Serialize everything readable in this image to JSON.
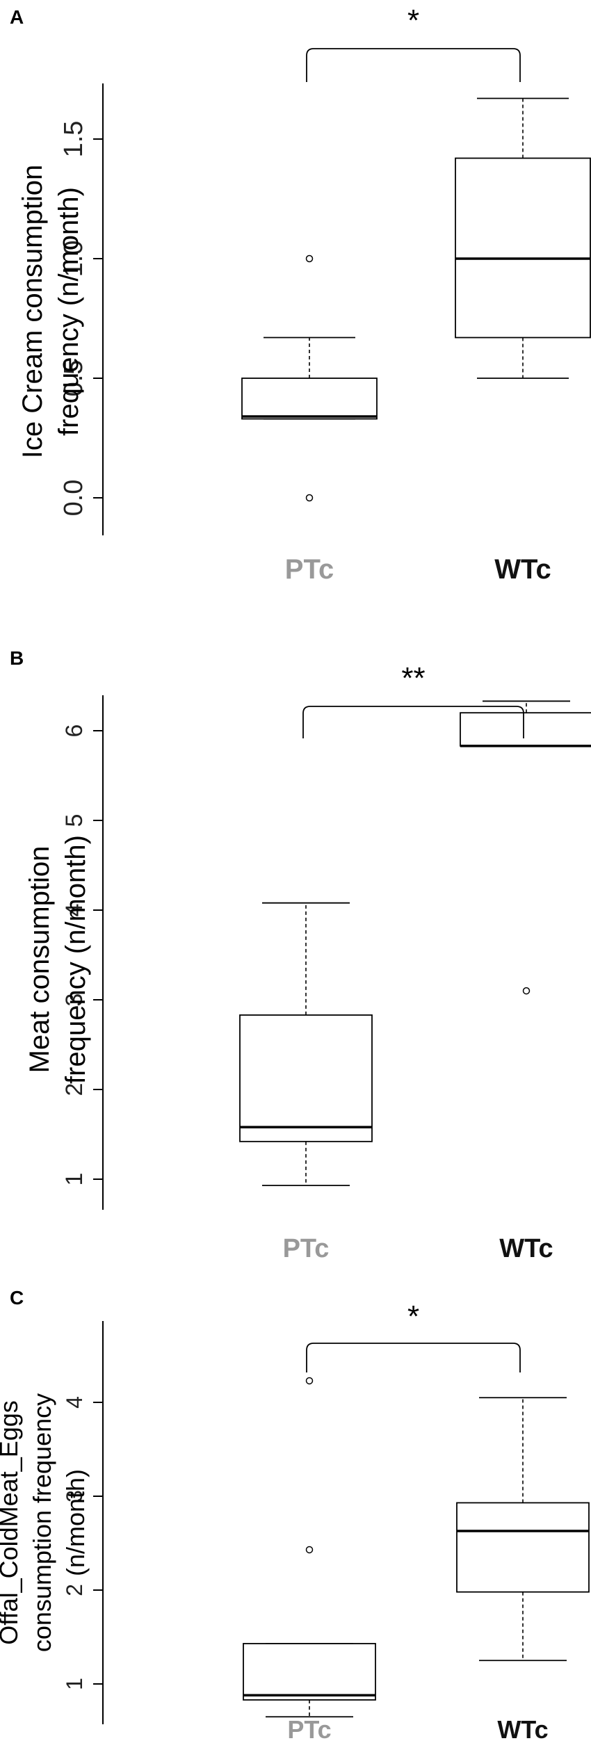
{
  "chart_data": [
    {
      "panel": "A",
      "type": "boxplot",
      "ylabel_lines": [
        "Ice Cream consumption",
        "frequency (n/month)"
      ],
      "categories": [
        "PTc",
        "WTc"
      ],
      "category_colors": [
        "#999999",
        "#111111"
      ],
      "ylim": [
        -0.15,
        1.8
      ],
      "yticks": [
        0.0,
        0.5,
        1.0,
        1.5
      ],
      "ytick_labels": [
        "0.0",
        "0.5",
        "1.0",
        "1.5"
      ],
      "significance": "*",
      "boxes": [
        {
          "name": "PTc",
          "whisker_low": 0.33,
          "q1": 0.33,
          "median": 0.34,
          "q3": 0.5,
          "whisker_high": 0.67,
          "outliers": [
            1.0,
            0.0
          ]
        },
        {
          "name": "WTc",
          "whisker_low": 0.5,
          "q1": 0.67,
          "median": 1.0,
          "q3": 1.42,
          "whisker_high": 1.67,
          "outliers": []
        }
      ]
    },
    {
      "panel": "B",
      "type": "boxplot",
      "ylabel_lines": [
        "Meat consumption",
        "frequency (n/month)"
      ],
      "categories": [
        "PTc",
        "WTc"
      ],
      "category_colors": [
        "#999999",
        "#111111"
      ],
      "ylim": [
        0.7,
        6.7
      ],
      "yticks": [
        1,
        2,
        3,
        4,
        5,
        6
      ],
      "ytick_labels": [
        "1",
        "2",
        "3",
        "4",
        "5",
        "6"
      ],
      "significance": "**",
      "boxes": [
        {
          "name": "PTc",
          "whisker_low": 0.93,
          "q1": 1.42,
          "median": 1.58,
          "q3": 2.83,
          "whisker_high": 4.08,
          "outliers": []
        },
        {
          "name": "WTc",
          "whisker_low": 5.83,
          "q1": 5.83,
          "median": 5.83,
          "q3": 6.2,
          "whisker_high": 6.33,
          "outliers": [
            3.1
          ]
        }
      ]
    },
    {
      "panel": "C",
      "type": "boxplot",
      "ylabel_lines": [
        "Offal_ColdMeat_Eggs",
        "consumption frequency",
        "(n/month)"
      ],
      "categories": [
        "PTc",
        "WTc"
      ],
      "category_colors": [
        "#999999",
        "#111111"
      ],
      "ylim": [
        0.55,
        4.7
      ],
      "yticks": [
        1,
        2,
        3,
        4
      ],
      "ytick_labels": [
        "1",
        "2",
        "3",
        "4"
      ],
      "significance": "*",
      "boxes": [
        {
          "name": "PTc",
          "whisker_low": 0.65,
          "q1": 0.83,
          "median": 0.88,
          "q3": 1.43,
          "whisker_high": 1.43,
          "outliers": [
            4.23,
            2.43
          ]
        },
        {
          "name": "WTc",
          "whisker_low": 1.25,
          "q1": 1.98,
          "median": 2.63,
          "q3": 2.93,
          "whisker_high": 4.05,
          "outliers": []
        }
      ]
    }
  ]
}
